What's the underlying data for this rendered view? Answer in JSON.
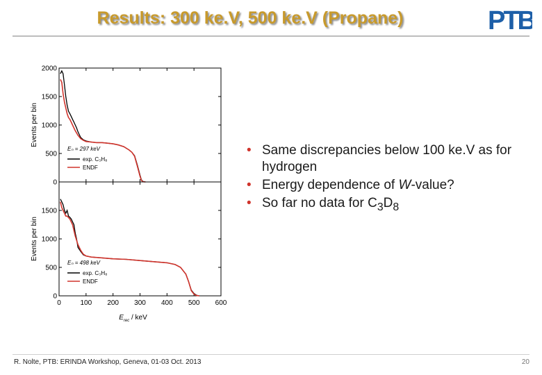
{
  "slide": {
    "title": "Results: 300 ke.V, 500 ke.V (Propane)",
    "logo_text": "PTB",
    "footer": "R. Nolte, PTB: ERINDA Workshop, Geneva, 01-03 Oct. 2013",
    "page_number": "20",
    "colors": {
      "title": "#c89a2c",
      "logo": "#1d5fa8",
      "bullet": "#d0342c",
      "exp": "#000000",
      "endf": "#d0342c"
    }
  },
  "bullets": [
    {
      "text": "Same discrepancies below 100 ke.V as for hydrogen"
    },
    {
      "text": "Energy dependence of ",
      "italic": "W",
      "after": "-value?"
    },
    {
      "text": "So far no data for C",
      "sub1": "3",
      "mid": "D",
      "sub2": "8"
    }
  ],
  "chart_data": [
    {
      "type": "line",
      "ylabel": "Events per bin",
      "xlim": [
        0,
        600
      ],
      "ylim": [
        0,
        2000
      ],
      "yticks": [
        0,
        500,
        1000,
        1500,
        2000
      ],
      "legend": [
        "Eₙ = 297 keV",
        "exp. C₃H₈",
        "ENDF"
      ],
      "legend_position": "bottom-left",
      "series": [
        {
          "name": "exp. C₃H₈",
          "x": [
            5,
            10,
            15,
            20,
            25,
            30,
            35,
            40,
            45,
            50,
            55,
            60,
            65,
            70,
            80,
            90,
            100,
            120,
            140,
            160,
            180,
            200,
            220,
            240,
            260,
            270,
            280,
            290,
            300,
            305,
            310,
            320
          ],
          "y": [
            1900,
            1950,
            1900,
            1700,
            1500,
            1350,
            1240,
            1200,
            1150,
            1100,
            1050,
            1000,
            950,
            880,
            780,
            740,
            720,
            700,
            690,
            690,
            680,
            670,
            650,
            620,
            560,
            520,
            460,
            300,
            120,
            40,
            10,
            0
          ]
        },
        {
          "name": "ENDF",
          "x": [
            5,
            10,
            15,
            20,
            25,
            30,
            35,
            40,
            45,
            50,
            60,
            70,
            80,
            90,
            100,
            120,
            140,
            160,
            180,
            200,
            220,
            240,
            260,
            270,
            280,
            290,
            300,
            305,
            310,
            320
          ],
          "y": [
            1800,
            1750,
            1550,
            1400,
            1300,
            1200,
            1130,
            1100,
            1050,
            1000,
            900,
            820,
            760,
            730,
            710,
            700,
            690,
            690,
            680,
            670,
            650,
            620,
            560,
            520,
            450,
            280,
            100,
            30,
            5,
            0
          ]
        }
      ]
    },
    {
      "type": "line",
      "ylabel": "Events per bin",
      "xlabel": "E",
      "xlabel_sub": "rec",
      "xlabel_unit": "/ keV",
      "xlim": [
        0,
        600
      ],
      "ylim": [
        0,
        2000
      ],
      "xticks": [
        0,
        100,
        200,
        300,
        400,
        500,
        600
      ],
      "yticks": [
        0,
        500,
        1000,
        1500
      ],
      "legend": [
        "Eₙ = 498 keV",
        "exp. C₃H₈",
        "ENDF"
      ],
      "legend_position": "bottom-left",
      "series": [
        {
          "name": "exp. C₃H₈",
          "x": [
            5,
            10,
            15,
            20,
            25,
            30,
            35,
            40,
            45,
            50,
            55,
            60,
            65,
            70,
            80,
            90,
            100,
            120,
            150,
            200,
            250,
            300,
            350,
            400,
            430,
            450,
            470,
            480,
            490,
            500,
            510,
            520
          ],
          "y": [
            1700,
            1650,
            1600,
            1500,
            1450,
            1500,
            1400,
            1380,
            1350,
            1300,
            1250,
            1100,
            1000,
            850,
            780,
            720,
            700,
            680,
            670,
            650,
            640,
            620,
            600,
            580,
            550,
            500,
            380,
            250,
            100,
            40,
            10,
            0
          ]
        },
        {
          "name": "ENDF",
          "x": [
            5,
            10,
            15,
            20,
            25,
            30,
            40,
            50,
            60,
            70,
            80,
            90,
            100,
            120,
            150,
            200,
            250,
            300,
            350,
            400,
            430,
            450,
            470,
            480,
            490,
            500,
            510,
            520
          ],
          "y": [
            1650,
            1550,
            1500,
            1450,
            1400,
            1400,
            1350,
            1250,
            1050,
            900,
            800,
            730,
            700,
            680,
            670,
            650,
            640,
            620,
            600,
            580,
            550,
            500,
            380,
            250,
            90,
            30,
            5,
            0
          ]
        }
      ]
    }
  ]
}
